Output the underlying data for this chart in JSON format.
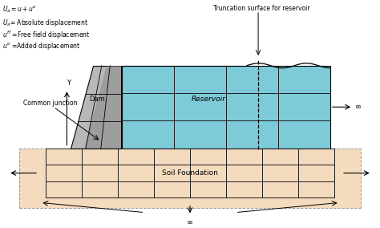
{
  "bg_color": "#ffffff",
  "reservoir_color": "#7dcbd8",
  "dam_color_light": "#b8b8b8",
  "dam_color_dark": "#888888",
  "dam_color_mid": "#d0d0d0",
  "foundation_color": "#f5dbbe",
  "grid_color": "#1a1a1a",
  "dashed_color": "#999999",
  "dam_label": "Dam",
  "reservoir_label": "Reservoir",
  "foundation_label": "Soil Foundation",
  "common_junction_label": "Common junction",
  "y_axis_label": "Y",
  "eq1": "$U_a=u + u^o$",
  "eq2": "$U_a$= Absolute displacement",
  "eq3": "$u^{ff}$ =Free field displacement",
  "eq4": "$u^o$ =Added displacement",
  "trunc_label": "Truncation surface for reservoir",
  "inf_symbol": "∞"
}
